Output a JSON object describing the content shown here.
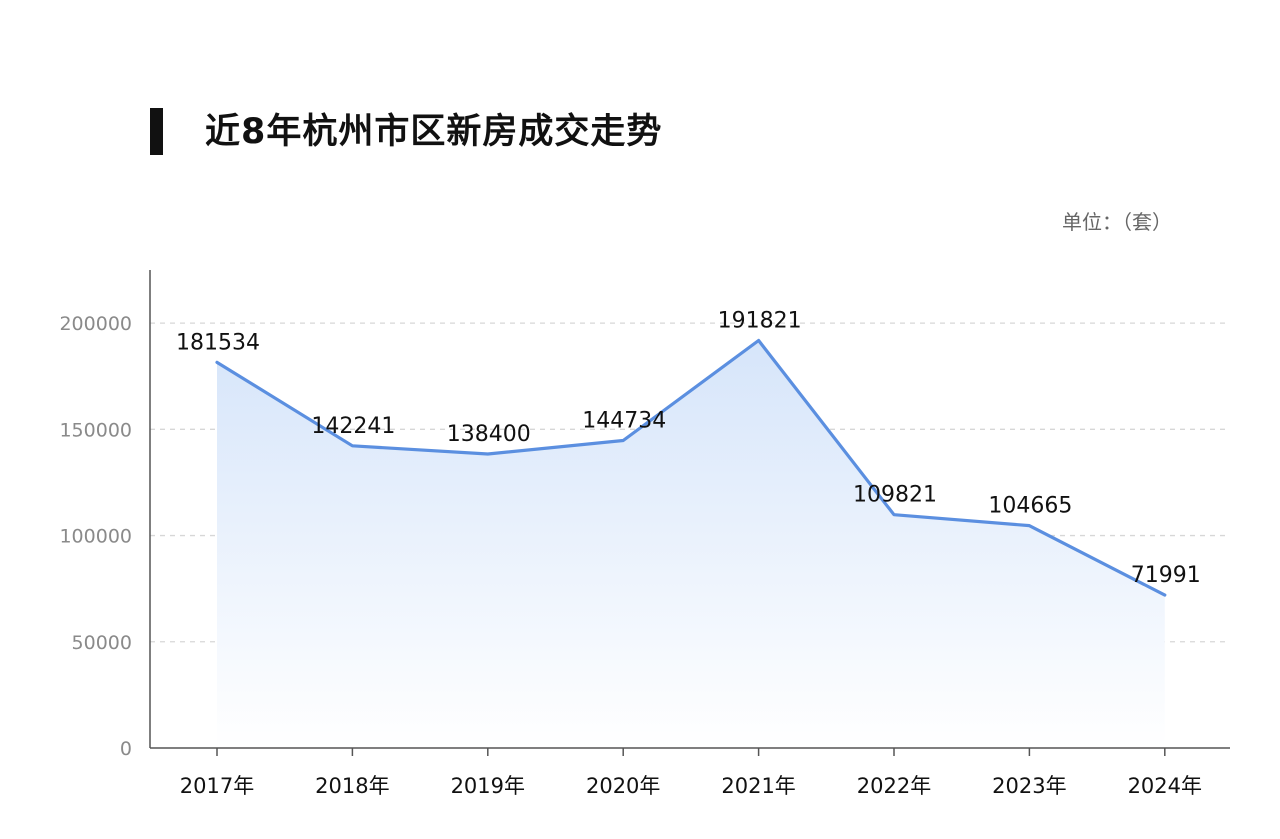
{
  "title": "近8年杭州市区新房成交走势",
  "unit": "单位：（套）",
  "chart_data": {
    "type": "area",
    "title": "近8年杭州市区新房成交走势",
    "xlabel": "",
    "ylabel": "",
    "unit": "单位：（套）",
    "categories": [
      "2017年",
      "2018年",
      "2019年",
      "2020年",
      "2021年",
      "2022年",
      "2023年",
      "2024年"
    ],
    "values": [
      181534,
      142241,
      138400,
      144734,
      191821,
      109821,
      104665,
      71991
    ],
    "data_labels": [
      "181534",
      "142241",
      "138400",
      "144734",
      "191821",
      "109821",
      "104665",
      "71991"
    ],
    "ylim": [
      0,
      225000
    ],
    "yticks": [
      0,
      50000,
      100000,
      150000,
      200000
    ],
    "ytick_labels": [
      "0",
      "50000",
      "100000",
      "150000",
      "200000"
    ],
    "grid": "horizontal dashed",
    "line_color": "#5B8FE0",
    "fill_color_top": "#D6E5FA",
    "fill_color_bottom": "#FFFFFF"
  }
}
